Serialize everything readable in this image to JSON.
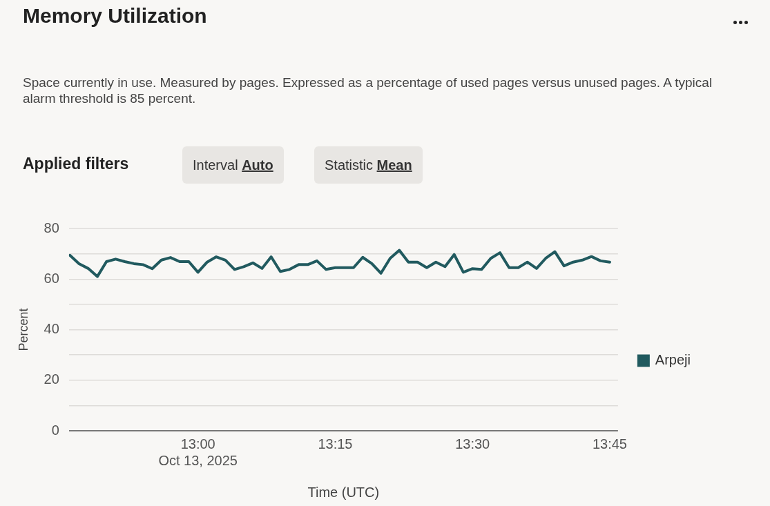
{
  "chart_data": {
    "type": "line",
    "title": "Memory Utilization",
    "subtitle": "Space currently in use. Measured by pages. Expressed as a percentage of used pages versus unused pages. A typical alarm threshold is 85 percent.",
    "annotations": [
      "Applied filters",
      "Interval",
      "Auto",
      "Statistic",
      "Mean"
    ],
    "xlabel": "Time (UTC)",
    "ylabel": "Percent",
    "x": [
      12.7667,
      12.7833,
      12.8,
      12.8167,
      12.8333,
      12.85,
      12.8667,
      12.8833,
      12.9,
      12.9167,
      12.9333,
      12.95,
      12.9667,
      12.9833,
      13,
      13.0167,
      13.0333,
      13.05,
      13.0667,
      13.0833,
      13.1,
      13.1167,
      13.1333,
      13.15,
      13.1667,
      13.1833,
      13.2,
      13.2167,
      13.2333,
      13.25,
      13.2667,
      13.2833,
      13.3,
      13.3167,
      13.3333,
      13.35,
      13.3667,
      13.3833,
      13.4,
      13.4167,
      13.4333,
      13.45,
      13.4667,
      13.4833,
      13.5,
      13.5167,
      13.5333,
      13.55,
      13.5667,
      13.5833,
      13.6,
      13.6167,
      13.6333,
      13.65,
      13.6667,
      13.6833,
      13.7,
      13.7167,
      13.7333,
      13.75
    ],
    "series": [
      {
        "name": "Arpeji",
        "color": "#215a5f",
        "values": [
          69.4,
          66.1,
          64.2,
          61,
          66.9,
          67.9,
          66.9,
          66.1,
          65.7,
          64.1,
          67.5,
          68.5,
          66.9,
          66.9,
          62.7,
          66.7,
          68.8,
          67.5,
          63.8,
          64.9,
          66.4,
          64.2,
          68.8,
          63,
          63.8,
          65.7,
          65.7,
          67.2,
          63.8,
          64.5,
          64.5,
          64.5,
          68.6,
          66.1,
          62.3,
          68.2,
          71.4,
          66.7,
          66.7,
          64.5,
          66.7,
          64.9,
          69.7,
          62.7,
          64.1,
          63.8,
          68.2,
          70.4,
          64.5,
          64.5,
          66.7,
          64.2,
          68.2,
          70.8,
          65.2,
          66.7,
          67.5,
          68.9,
          67.2,
          66.7
        ]
      }
    ],
    "xlim": [
      12.765,
      13.765
    ],
    "xticks": [
      {
        "value": 13,
        "label": "13:00\nOct 13, 2025"
      },
      {
        "value": 13.25,
        "label": "13:15"
      },
      {
        "value": 13.5,
        "label": "13:30"
      },
      {
        "value": 13.75,
        "label": "13:45"
      }
    ],
    "ylim": [
      0,
      80
    ],
    "yticks": [
      0,
      {
        "value": 10,
        "label": null
      },
      20,
      {
        "value": 30,
        "label": null
      },
      40,
      {
        "value": 50,
        "label": null
      },
      60,
      {
        "value": 70,
        "label": null
      },
      80
    ],
    "grid": "y",
    "legend": "right",
    "marker": "none",
    "line_style": "solid"
  }
}
